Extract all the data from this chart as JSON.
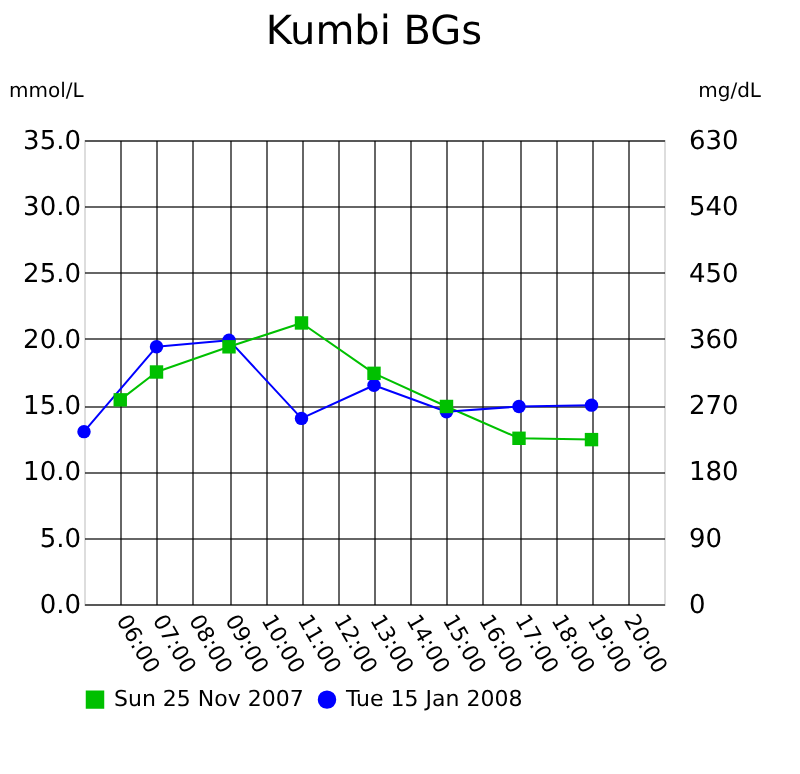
{
  "chart_data": {
    "type": "line",
    "title": "Kumbi BGs",
    "ylabel": "mmol/L",
    "y2label": "mg/dL",
    "series": [
      {
        "name": "Sun 25 Nov 2007",
        "color": "#00c000",
        "marker": "square",
        "x": [
          6,
          7,
          9,
          11,
          13,
          15,
          17,
          19
        ],
        "values": [
          15.4,
          17.5,
          19.4,
          21.2,
          17.4,
          14.9,
          12.5,
          12.4
        ]
      },
      {
        "name": "Tue 15 Jan 2008",
        "color": "#0000ff",
        "marker": "circle",
        "x": [
          5,
          7,
          9,
          11,
          13,
          15,
          17,
          19
        ],
        "values": [
          13.0,
          19.4,
          19.9,
          14.0,
          16.5,
          14.5,
          14.9,
          15.0
        ]
      }
    ],
    "xlim": [
      5,
      21
    ],
    "xticks": [
      {
        "value": 6,
        "label": "06:00"
      },
      {
        "value": 7,
        "label": "07:00"
      },
      {
        "value": 8,
        "label": "08:00"
      },
      {
        "value": 9,
        "label": "09:00"
      },
      {
        "value": 10,
        "label": "10:00"
      },
      {
        "value": 11,
        "label": "11:00"
      },
      {
        "value": 12,
        "label": "12:00"
      },
      {
        "value": 13,
        "label": "13:00"
      },
      {
        "value": 14,
        "label": "14:00"
      },
      {
        "value": 15,
        "label": "15:00"
      },
      {
        "value": 16,
        "label": "16:00"
      },
      {
        "value": 17,
        "label": "17:00"
      },
      {
        "value": 18,
        "label": "18:00"
      },
      {
        "value": 19,
        "label": "19:00"
      },
      {
        "value": 20,
        "label": "20:00"
      }
    ],
    "ylim": [
      0,
      35
    ],
    "yticks": [
      {
        "value": 0,
        "label": "0.0"
      },
      {
        "value": 5,
        "label": "5.0"
      },
      {
        "value": 10,
        "label": "10.0"
      },
      {
        "value": 15,
        "label": "15.0"
      },
      {
        "value": 20,
        "label": "20.0"
      },
      {
        "value": 25,
        "label": "25.0"
      },
      {
        "value": 30,
        "label": "30.0"
      },
      {
        "value": 35,
        "label": "35.0"
      }
    ],
    "y2lim": [
      0,
      630
    ],
    "y2ticks": [
      0,
      90,
      180,
      270,
      360,
      450,
      540,
      630
    ],
    "grid": true,
    "legend": "bottom",
    "line_style": "solid"
  }
}
